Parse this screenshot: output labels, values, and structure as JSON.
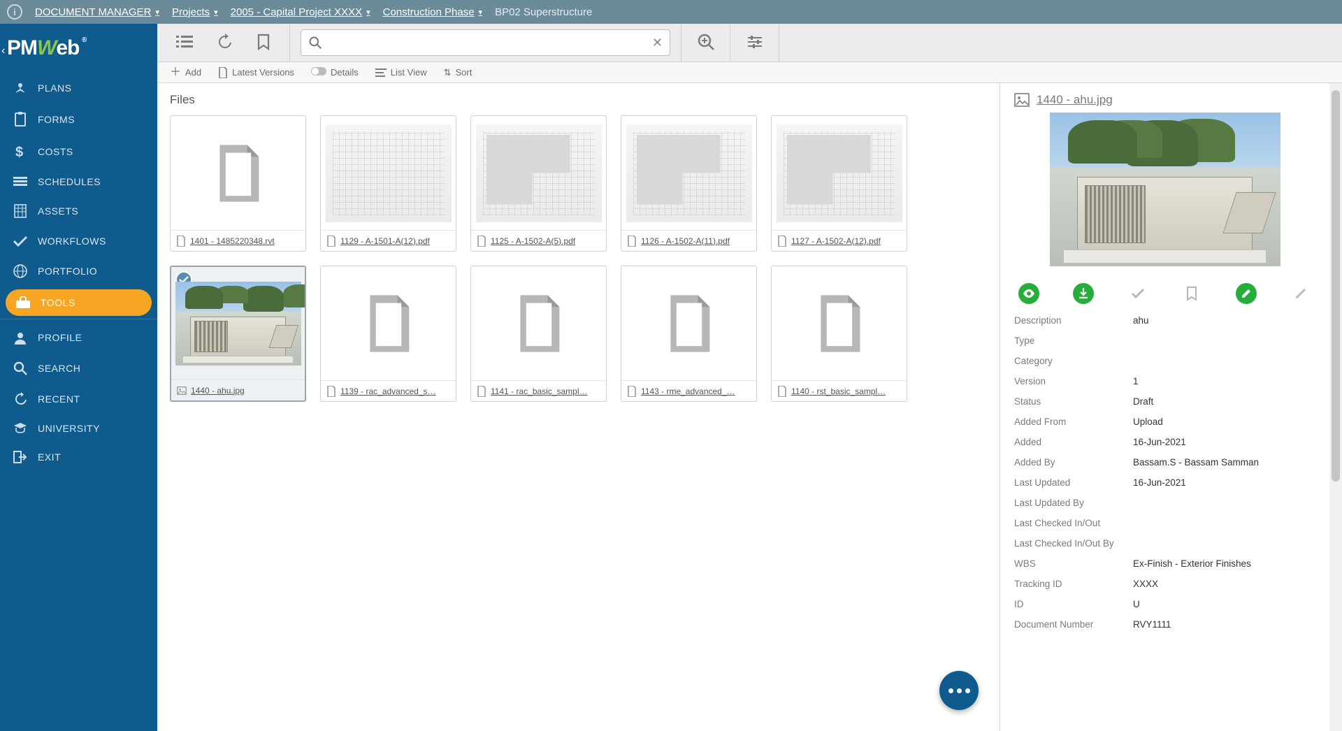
{
  "breadcrumb": {
    "root": "DOCUMENT MANAGER",
    "l1": "Projects",
    "l2": "2005 - Capital Project XXXX",
    "l3": "Construction Phase",
    "leaf": "BP02 Superstructure"
  },
  "sidebar": {
    "items": [
      {
        "label": "PLANS"
      },
      {
        "label": "FORMS"
      },
      {
        "label": "COSTS"
      },
      {
        "label": "SCHEDULES"
      },
      {
        "label": "ASSETS"
      },
      {
        "label": "WORKFLOWS"
      },
      {
        "label": "PORTFOLIO"
      },
      {
        "label": "TOOLS"
      },
      {
        "label": "PROFILE"
      },
      {
        "label": "SEARCH"
      },
      {
        "label": "RECENT"
      },
      {
        "label": "UNIVERSITY"
      },
      {
        "label": "EXIT"
      }
    ],
    "selected_index": 7
  },
  "toolbar2": {
    "add": "Add",
    "latest": "Latest Versions",
    "details": "Details",
    "listview": "List View",
    "sort": "Sort"
  },
  "files": {
    "title": "Files",
    "items": [
      {
        "name": "1401 - 1485220348.rvt",
        "kind": "generic"
      },
      {
        "name": "1129 - A-1501-A(12).pdf",
        "kind": "plan"
      },
      {
        "name": "1125 - A-1502-A(5).pdf",
        "kind": "plan-l"
      },
      {
        "name": "1126 - A-1502-A(11).pdf",
        "kind": "plan-l"
      },
      {
        "name": "1127 - A-1502-A(12).pdf",
        "kind": "plan-l"
      },
      {
        "name": "1440 - ahu.jpg",
        "kind": "ahu",
        "selected": true
      },
      {
        "name": "1139 - rac_advanced_s…",
        "kind": "generic"
      },
      {
        "name": "1141 - rac_basic_sampl…",
        "kind": "generic"
      },
      {
        "name": "1143 - rme_advanced_…",
        "kind": "generic"
      },
      {
        "name": "1140 - rst_basic_sampl…",
        "kind": "generic"
      }
    ]
  },
  "details": {
    "filename": "1440 - ahu.jpg",
    "fields": [
      {
        "k": "Description",
        "v": "ahu"
      },
      {
        "k": "Type",
        "v": ""
      },
      {
        "k": "Category",
        "v": ""
      },
      {
        "k": "Version",
        "v": "1"
      },
      {
        "k": "Status",
        "v": "Draft"
      },
      {
        "k": "Added From",
        "v": "Upload"
      },
      {
        "k": "Added",
        "v": "16-Jun-2021"
      },
      {
        "k": "Added By",
        "v": "Bassam.S - Bassam Samman"
      },
      {
        "k": "Last Updated",
        "v": "16-Jun-2021"
      },
      {
        "k": "Last Updated By",
        "v": ""
      },
      {
        "k": "Last Checked In/Out",
        "v": ""
      },
      {
        "k": "Last Checked In/Out By",
        "v": ""
      },
      {
        "k": "WBS",
        "v": "Ex-Finish - Exterior Finishes"
      },
      {
        "k": "Tracking ID",
        "v": "XXXX"
      },
      {
        "k": "ID",
        "v": "U"
      },
      {
        "k": "Document Number",
        "v": "RVY1111"
      }
    ]
  },
  "colors": {
    "sidebar": "#0f5b8e",
    "accent": "#f7a623",
    "topbar": "#6b8a9a",
    "green": "#27ae3a"
  }
}
